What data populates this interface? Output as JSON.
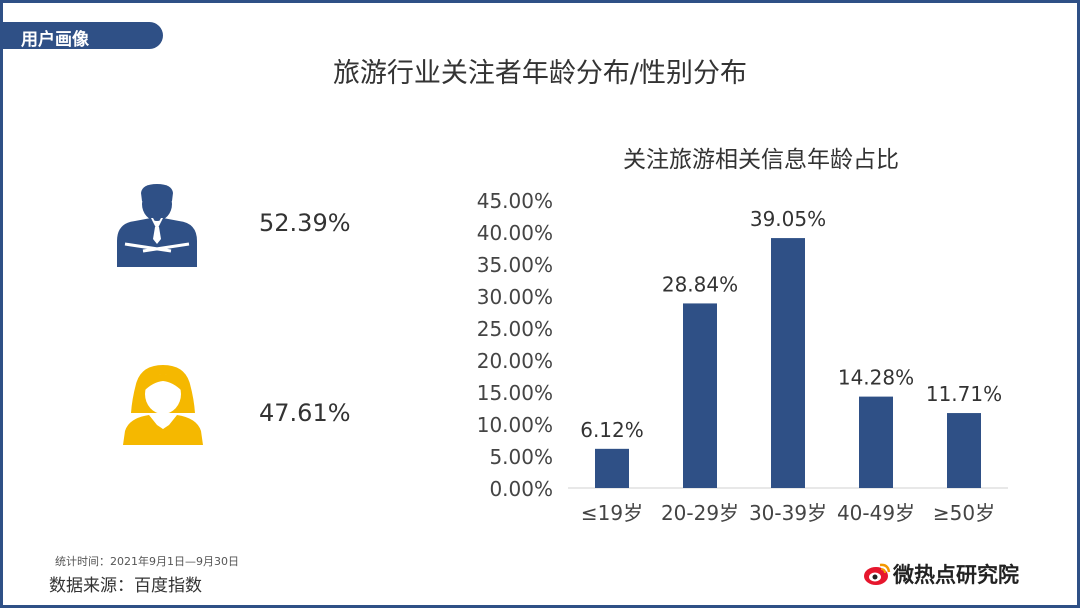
{
  "header": {
    "tag": "用户画像",
    "title": "旅游行业关注者年龄分布/性别分布"
  },
  "gender": {
    "male": "52.39%",
    "female": "47.61%"
  },
  "colors": {
    "bar": "#2f5086",
    "male_icon": "#2f5086",
    "female_icon": "#f5b800",
    "frame": "#2f5086"
  },
  "footer": {
    "period": "统计时间：2021年9月1日—9月30日",
    "source": "数据来源：百度指数",
    "brand": "微热点研究院"
  },
  "chart_data": {
    "type": "bar",
    "title": "关注旅游相关信息年龄占比",
    "categories": [
      "≤19岁",
      "20-29岁",
      "30-39岁",
      "40-49岁",
      "≥50岁"
    ],
    "values": [
      6.12,
      28.84,
      39.05,
      14.28,
      11.71
    ],
    "value_labels": [
      "6.12%",
      "28.84%",
      "39.05%",
      "14.28%",
      "11.71%"
    ],
    "y_ticks": [
      "0.00%",
      "5.00%",
      "10.00%",
      "15.00%",
      "20.00%",
      "25.00%",
      "30.00%",
      "35.00%",
      "40.00%",
      "45.00%"
    ],
    "ylim": [
      0,
      45
    ],
    "grid": false,
    "legend": "none"
  }
}
